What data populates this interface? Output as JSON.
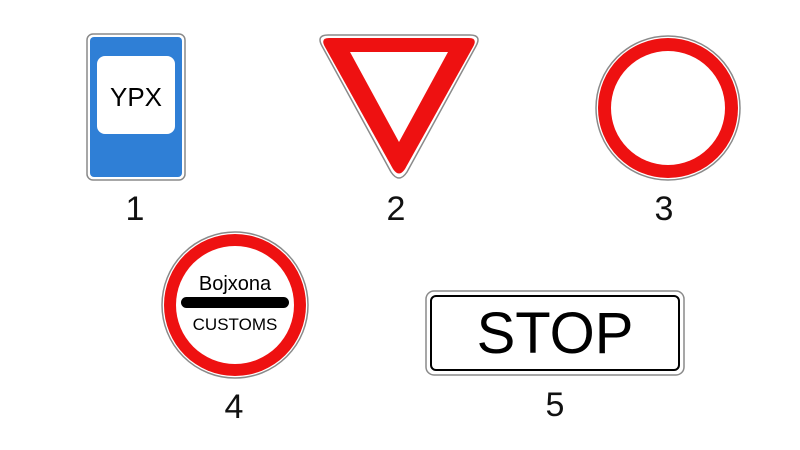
{
  "colors": {
    "blue": "#2f7fd6",
    "red": "#ee1111",
    "white": "#ffffff",
    "black": "#000000",
    "outline": "#8a8a8a"
  },
  "signs": [
    {
      "number": "1",
      "kind": "bus-stop-sign",
      "text": "YPX"
    },
    {
      "number": "2",
      "kind": "yield-triangle-sign"
    },
    {
      "number": "3",
      "kind": "no-vehicles-circle-sign"
    },
    {
      "number": "4",
      "kind": "customs-sign",
      "text_top": "Bojxona",
      "text_bottom": "CUSTOMS"
    },
    {
      "number": "5",
      "kind": "stop-plate-sign",
      "text": "STOP"
    }
  ]
}
